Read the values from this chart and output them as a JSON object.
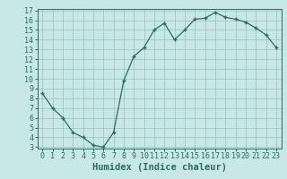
{
  "x": [
    0,
    1,
    2,
    3,
    4,
    5,
    6,
    7,
    8,
    9,
    10,
    11,
    12,
    13,
    14,
    15,
    16,
    17,
    18,
    19,
    20,
    21,
    22,
    23
  ],
  "y": [
    8.5,
    7.0,
    6.0,
    4.5,
    4.0,
    3.2,
    3.0,
    4.5,
    9.8,
    12.3,
    13.2,
    15.0,
    15.7,
    14.0,
    15.0,
    16.1,
    16.2,
    16.8,
    16.3,
    16.1,
    15.8,
    15.2,
    14.5,
    13.2
  ],
  "xlabel": "Humidex (Indice chaleur)",
  "ylim": [
    3,
    17
  ],
  "xlim": [
    -0.5,
    23.5
  ],
  "yticks": [
    3,
    4,
    5,
    6,
    7,
    8,
    9,
    10,
    11,
    12,
    13,
    14,
    15,
    16,
    17
  ],
  "xticks": [
    0,
    1,
    2,
    3,
    4,
    5,
    6,
    7,
    8,
    9,
    10,
    11,
    12,
    13,
    14,
    15,
    16,
    17,
    18,
    19,
    20,
    21,
    22,
    23
  ],
  "line_color": "#2d6b5e",
  "marker": "+",
  "bg_color": "#c8e8e8",
  "grid_color": "#9abebe",
  "tick_label_color": "#2d6b5e",
  "xlabel_color": "#2d6b5e",
  "xlabel_fontsize": 7.5,
  "tick_fontsize": 6.0
}
